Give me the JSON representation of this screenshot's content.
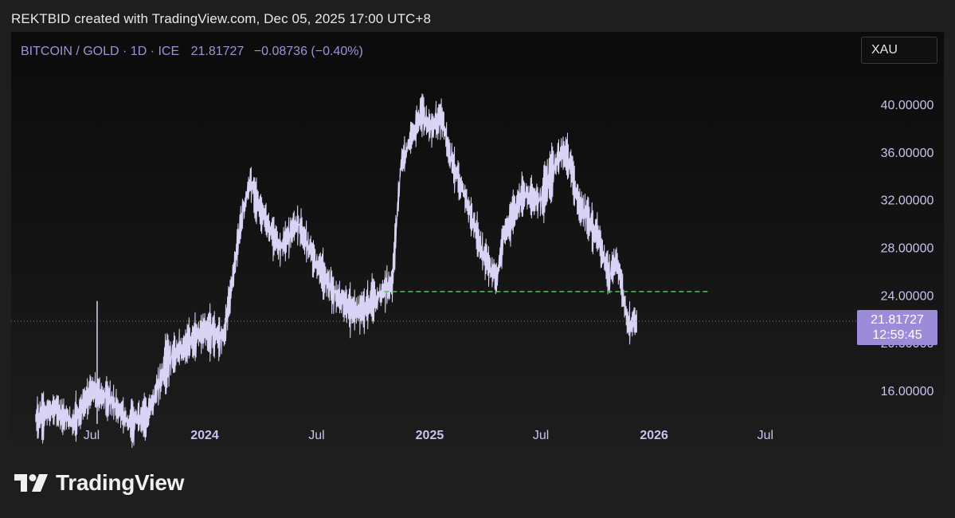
{
  "header": {
    "credit": "REKTBID created with TradingView.com, Dec 05, 2025 17:00 UTC+8"
  },
  "legend": {
    "title": "BITCOIN / GOLD · 1D · ICE",
    "value": "21.81727",
    "change": "−0.08736 (−0.40%)"
  },
  "symbol_box": {
    "label": "XAU"
  },
  "price_tag": {
    "price": "21.81727",
    "countdown": "12:59:45"
  },
  "brand": {
    "name": "TradingView"
  },
  "colors": {
    "candle": "#d9d3f5",
    "accent": "#9b8bd8",
    "support_line": "#3fcf4a",
    "axis_text": "#c9c2ec",
    "last_price_line": "#8a8a8a"
  },
  "chart_data": {
    "type": "line",
    "title": "BITCOIN / GOLD · 1D · ICE",
    "x_ticks": [
      {
        "date": "2023-07",
        "label": "Jul",
        "bold": false
      },
      {
        "date": "2024-01",
        "label": "2024",
        "bold": true
      },
      {
        "date": "2024-07",
        "label": "Jul",
        "bold": false
      },
      {
        "date": "2025-01",
        "label": "2025",
        "bold": true
      },
      {
        "date": "2025-07",
        "label": "Jul",
        "bold": false
      },
      {
        "date": "2026-01",
        "label": "2026",
        "bold": true
      },
      {
        "date": "2026-07",
        "label": "Jul",
        "bold": false
      }
    ],
    "y_ticks": [
      "16.00000",
      "20.00000",
      "24.00000",
      "28.00000",
      "32.00000",
      "36.00000",
      "40.00000"
    ],
    "ylim": [
      13,
      41.5
    ],
    "series": [
      {
        "values": [
          [
            "2023-04-01",
            13.5
          ],
          [
            "2023-05-01",
            14.5
          ],
          [
            "2023-06-01",
            13.3
          ],
          [
            "2023-07-01",
            16.0
          ],
          [
            "2023-08-01",
            15.2
          ],
          [
            "2023-09-01",
            13.2
          ],
          [
            "2023-10-01",
            14.0
          ],
          [
            "2023-11-01",
            18.5
          ],
          [
            "2023-12-01",
            19.8
          ],
          [
            "2024-01-01",
            21.0
          ],
          [
            "2024-02-01",
            20.5
          ],
          [
            "2024-03-01",
            30.5
          ],
          [
            "2024-03-15",
            33.5
          ],
          [
            "2024-04-01",
            31.0
          ],
          [
            "2024-05-01",
            28.0
          ],
          [
            "2024-06-01",
            30.0
          ],
          [
            "2024-07-01",
            26.5
          ],
          [
            "2024-08-01",
            24.0
          ],
          [
            "2024-09-01",
            22.5
          ],
          [
            "2024-10-01",
            23.5
          ],
          [
            "2024-11-01",
            25.0
          ],
          [
            "2024-11-15",
            35.0
          ],
          [
            "2024-12-01",
            37.0
          ],
          [
            "2024-12-20",
            39.5
          ],
          [
            "2025-01-01",
            38.0
          ],
          [
            "2025-01-20",
            39.0
          ],
          [
            "2025-02-01",
            36.0
          ],
          [
            "2025-03-01",
            32.0
          ],
          [
            "2025-04-01",
            27.0
          ],
          [
            "2025-04-20",
            25.5
          ],
          [
            "2025-05-01",
            29.0
          ],
          [
            "2025-06-01",
            32.5
          ],
          [
            "2025-07-01",
            32.0
          ],
          [
            "2025-08-01",
            36.0
          ],
          [
            "2025-08-15",
            35.5
          ],
          [
            "2025-09-01",
            31.5
          ],
          [
            "2025-10-01",
            29.0
          ],
          [
            "2025-10-20",
            25.5
          ],
          [
            "2025-11-01",
            27.0
          ],
          [
            "2025-11-20",
            21.5
          ],
          [
            "2025-12-05",
            21.81727
          ]
        ]
      }
    ],
    "support_level": 24.3,
    "last_price": 21.81727
  }
}
